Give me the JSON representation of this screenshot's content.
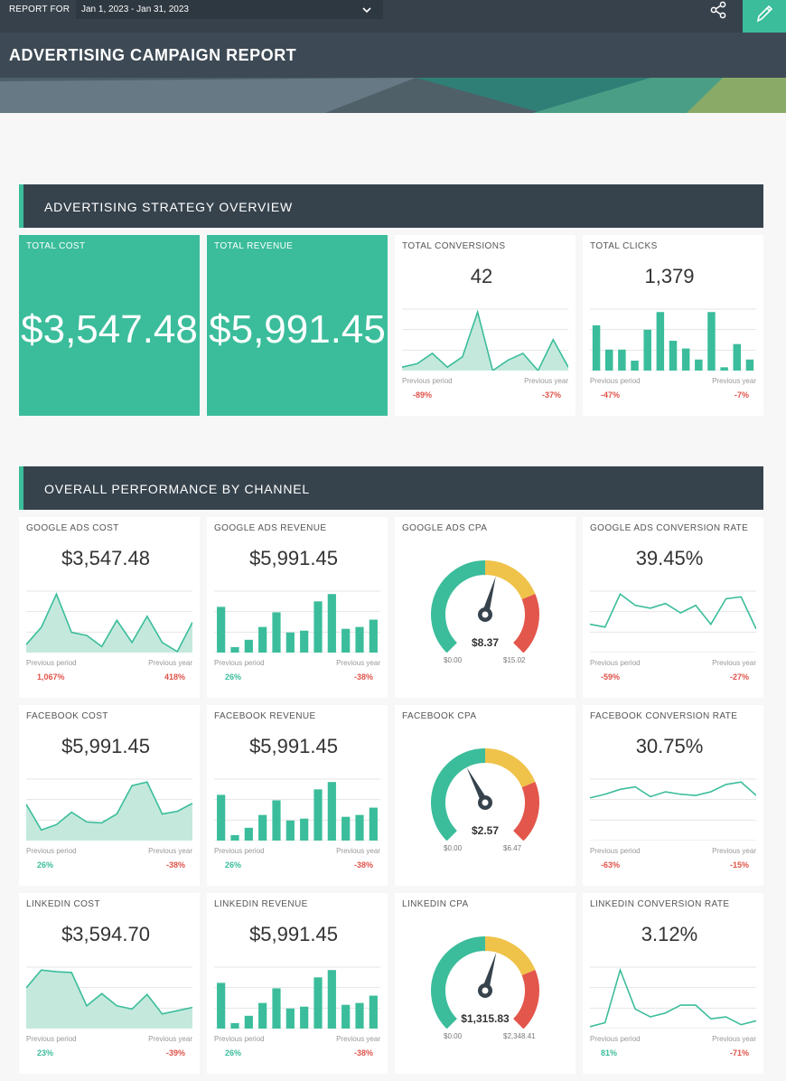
{
  "header": {
    "report_for_label": "REPORT FOR",
    "date_range": "Jan 1, 2023 - Jan 31, 2023",
    "title": "ADVERTISING CAMPAIGN REPORT",
    "chevron_icon": "chevron-down-icon",
    "share_icon": "share-icon",
    "edit_icon": "pencil-icon",
    "accent": "#3bbd9b"
  },
  "sections": {
    "overview": "ADVERTISING STRATEGY OVERVIEW",
    "channel": "OVERALL PERFORMANCE BY CHANNEL"
  },
  "overview": {
    "total_cost": {
      "title": "TOTAL COST",
      "value": "$3,547.48"
    },
    "total_revenue": {
      "title": "TOTAL REVENUE",
      "value": "$5,991.45"
    },
    "total_conversions": {
      "title": "TOTAL CONVERSIONS",
      "value": "42",
      "prev_period_label": "Previous period",
      "prev_year_label": "Previous year",
      "prev_period": "-89%",
      "prev_year": "-37%"
    },
    "total_clicks": {
      "title": "TOTAL CLICKS",
      "value": "1,379",
      "prev_period_label": "Previous period",
      "prev_year_label": "Previous year",
      "prev_period": "-47%",
      "prev_year": "-7%"
    }
  },
  "channels": {
    "google_cost": {
      "title": "GOOGLE ADS COST",
      "value": "$3,547.48",
      "prev_period_label": "Previous period",
      "prev_year_label": "Previous year",
      "prev_period": "1,067%",
      "prev_year": "418%"
    },
    "google_revenue": {
      "title": "GOOGLE ADS REVENUE",
      "value": "$5,991.45",
      "prev_period_label": "Previous period",
      "prev_year_label": "Previous year",
      "prev_period": "26%",
      "prev_year": "-38%"
    },
    "google_cpa": {
      "title": "GOOGLE ADS CPA",
      "value": "$8.37",
      "min": "$0.00",
      "max": "$15.02"
    },
    "google_conv": {
      "title": "GOOGLE ADS CONVERSION RATE",
      "value": "39.45%",
      "prev_period_label": "Previous period",
      "prev_year_label": "Previous year",
      "prev_period": "-59%",
      "prev_year": "-27%"
    },
    "facebook_cost": {
      "title": "FACEBOOK COST",
      "value": "$5,991.45",
      "prev_period_label": "Previous period",
      "prev_year_label": "Previous year",
      "prev_period": "26%",
      "prev_year": "-38%"
    },
    "facebook_revenue": {
      "title": "FACEBOOK REVENUE",
      "value": "$5,991.45",
      "prev_period_label": "Previous period",
      "prev_year_label": "Previous year",
      "prev_period": "26%",
      "prev_year": "-38%"
    },
    "facebook_cpa": {
      "title": "FACEBOOK CPA",
      "value": "$2.57",
      "min": "$0.00",
      "max": "$6.47"
    },
    "facebook_conv": {
      "title": "FACEBOOK CONVERSION RATE",
      "value": "30.75%",
      "prev_period_label": "Previous period",
      "prev_year_label": "Previous year",
      "prev_period": "-63%",
      "prev_year": "-15%"
    },
    "linkedin_cost": {
      "title": "LINKEDIN COST",
      "value": "$3,594.70",
      "prev_period_label": "Previous period",
      "prev_year_label": "Previous year",
      "prev_period": "23%",
      "prev_year": "-39%"
    },
    "linkedin_revenue": {
      "title": "LINKEDIN REVENUE",
      "value": "$5,991.45",
      "prev_period_label": "Previous period",
      "prev_year_label": "Previous year",
      "prev_period": "26%",
      "prev_year": "-38%"
    },
    "linkedin_cpa": {
      "title": "LINKEDIN CPA",
      "value": "$1,315.83",
      "min": "$0.00",
      "max": "$2,348.41"
    },
    "linkedin_conv": {
      "title": "LINKEDIN CONVERSION RATE",
      "value": "3.12%",
      "prev_period_label": "Previous period",
      "prev_year_label": "Previous year",
      "prev_period": "81%",
      "prev_year": "-71%"
    }
  },
  "chart_data": [
    {
      "id": "total_conversions",
      "type": "area",
      "values": [
        1,
        2,
        5,
        1,
        4,
        17,
        0,
        3,
        5,
        0,
        9,
        1
      ]
    },
    {
      "id": "total_clicks",
      "type": "bar",
      "values": [
        41,
        19,
        19,
        9,
        37,
        53,
        27,
        20,
        10,
        53,
        3,
        24,
        10
      ]
    },
    {
      "id": "google_cost",
      "type": "area",
      "values": [
        8,
        25,
        58,
        20,
        17,
        6,
        32,
        10,
        36,
        10,
        1,
        30
      ]
    },
    {
      "id": "google_revenue",
      "type": "bar",
      "values": [
        25,
        3,
        7,
        14,
        22,
        11,
        12,
        28,
        32,
        13,
        14,
        18
      ]
    },
    {
      "id": "google_conv",
      "type": "line",
      "values": [
        30,
        27,
        62,
        50,
        47,
        52,
        42,
        50,
        30,
        57,
        59,
        25
      ]
    },
    {
      "id": "google_cpa",
      "type": "gauge",
      "value": 8.37,
      "min": 0,
      "max": 15.02
    },
    {
      "id": "facebook_cost",
      "type": "area",
      "values": [
        41,
        12,
        18,
        32,
        21,
        20,
        30,
        62,
        66,
        30,
        33,
        42
      ]
    },
    {
      "id": "facebook_revenue",
      "type": "bar",
      "values": [
        25,
        3,
        7,
        14,
        22,
        11,
        12,
        28,
        32,
        13,
        14,
        18
      ]
    },
    {
      "id": "facebook_conv",
      "type": "line",
      "values": [
        35,
        38,
        42,
        44,
        36,
        40,
        38,
        37,
        40,
        46,
        48,
        37
      ]
    },
    {
      "id": "facebook_cpa",
      "type": "gauge",
      "value": 2.57,
      "min": 0,
      "max": 6.47
    },
    {
      "id": "linkedin_cost",
      "type": "area",
      "values": [
        50,
        72,
        70,
        69,
        28,
        43,
        28,
        24,
        42,
        18,
        22,
        26
      ]
    },
    {
      "id": "linkedin_revenue",
      "type": "bar",
      "values": [
        25,
        3,
        7,
        14,
        22,
        11,
        12,
        28,
        32,
        13,
        14,
        18
      ]
    },
    {
      "id": "linkedin_conv",
      "type": "line",
      "values": [
        1,
        3,
        30,
        10,
        6,
        8,
        12,
        12,
        5,
        6,
        2,
        4
      ]
    },
    {
      "id": "linkedin_cpa",
      "type": "gauge",
      "value": 1315.83,
      "min": 0,
      "max": 2348.41
    }
  ]
}
